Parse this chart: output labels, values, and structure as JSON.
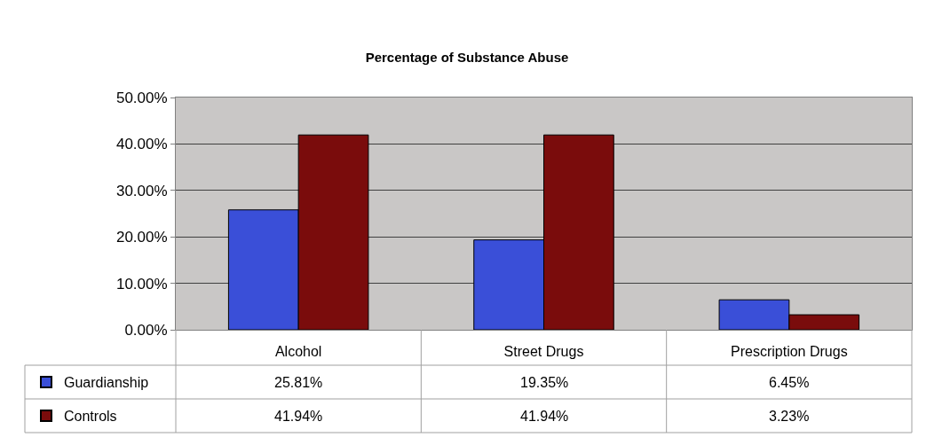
{
  "chart_data": {
    "type": "bar",
    "title": "Percentage of Substance Abuse",
    "categories": [
      "Alcohol",
      "Street Drugs",
      "Prescription Drugs"
    ],
    "series": [
      {
        "name": "Guardianship",
        "color": "#3a4fd8",
        "values": [
          25.81,
          19.35,
          6.45
        ],
        "value_labels": [
          "25.81%",
          "19.35%",
          "6.45%"
        ]
      },
      {
        "name": "Controls",
        "color": "#7a0c0c",
        "values": [
          41.94,
          41.94,
          3.23
        ],
        "value_labels": [
          "41.94%",
          "41.94%",
          "3.23%"
        ]
      }
    ],
    "ylim": [
      0,
      50
    ],
    "yticks": [
      {
        "value": 0,
        "label": "0.00%"
      },
      {
        "value": 10,
        "label": "10.00%"
      },
      {
        "value": 20,
        "label": "20.00%"
      },
      {
        "value": 30,
        "label": "30.00%"
      },
      {
        "value": 40,
        "label": "40.00%"
      },
      {
        "value": 50,
        "label": "50.00%"
      }
    ],
    "grid": "y",
    "legend": "bottom left"
  }
}
